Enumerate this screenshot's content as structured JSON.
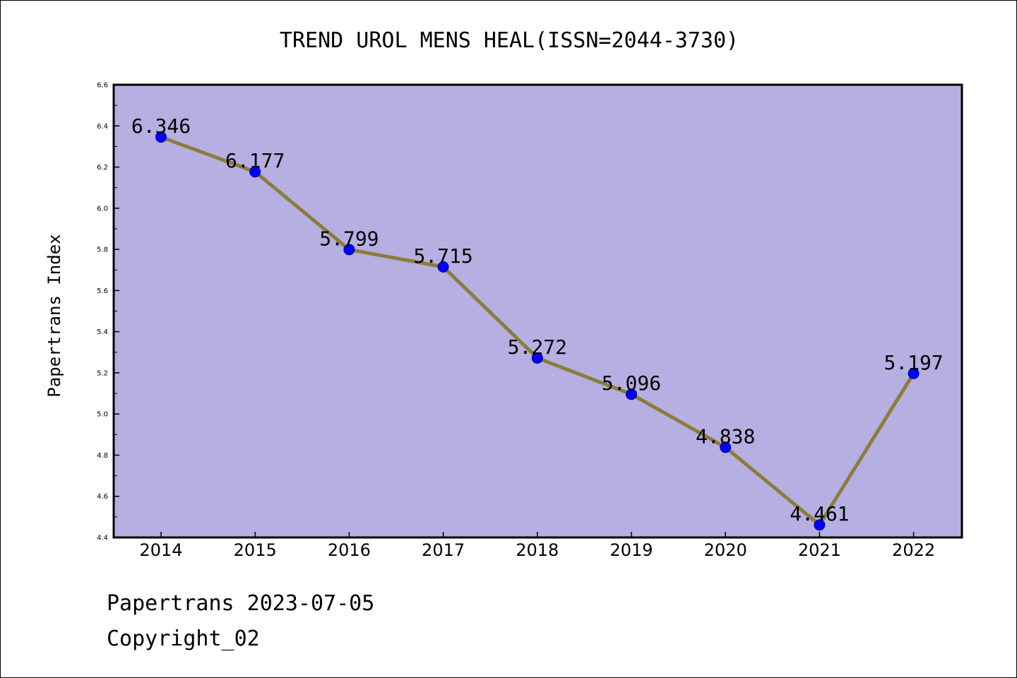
{
  "footer": {
    "line1": "Papertrans 2023-07-05",
    "line2": "Copyright_02"
  },
  "colors": {
    "plot_background": "#b5afe2",
    "line": "#8b7d3a",
    "marker": "#0000ff",
    "marker_edge": "#00008b"
  },
  "chart_data": {
    "type": "line",
    "title": "TREND UROL MENS HEAL(ISSN=2044-3730)",
    "xlabel": "",
    "ylabel": "Papertrans Index",
    "categories": [
      "2014",
      "2015",
      "2016",
      "2017",
      "2018",
      "2019",
      "2020",
      "2021",
      "2022"
    ],
    "series": [
      {
        "values": [
          6.346,
          6.177,
          5.799,
          5.715,
          5.272,
          5.096,
          4.838,
          4.461,
          5.197
        ],
        "labels": [
          "6.346",
          "6.177",
          "5.799",
          "5.715",
          "5.272",
          "5.096",
          "4.838",
          "4.461",
          "5.197"
        ]
      }
    ],
    "ylim": [
      4.4,
      6.6
    ],
    "yticks": [
      "4.4",
      "4.6",
      "4.8",
      "5.0",
      "5.2",
      "5.4",
      "5.6",
      "5.8",
      "6.0",
      "6.2",
      "6.4",
      "6.6"
    ],
    "grid": false,
    "legend": "none"
  }
}
